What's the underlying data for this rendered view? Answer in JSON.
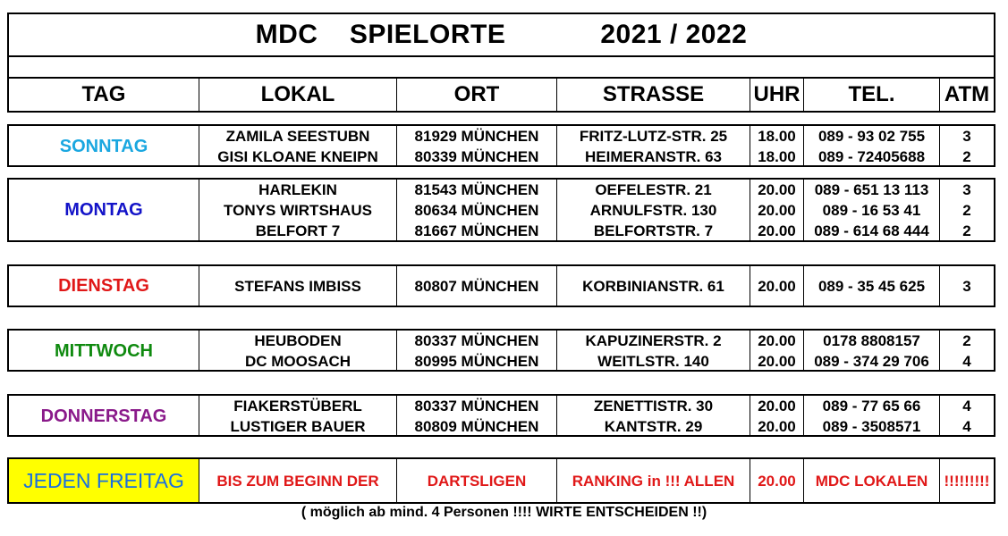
{
  "title": {
    "mdc": "MDC",
    "spielorte": "SPIELORTE",
    "season": "2021 / 2022"
  },
  "headers": [
    "TAG",
    "LOKAL",
    "ORT",
    "STRASSE",
    "UHR",
    "TEL.",
    "ATM"
  ],
  "colors": {
    "sonntag": "#1aa7e0",
    "montag": "#1313c8",
    "dienstag": "#e01818",
    "mittwoch": "#0f8a0f",
    "donnerstag": "#8a1a8a",
    "freitag_text": "#1a6fe0",
    "freitag_bg": "#ffff00",
    "red": "#e01818"
  },
  "groups": [
    {
      "day": "SONNTAG",
      "rows": [
        {
          "lokal": "ZAMILA SEESTUBN",
          "ort": "81929 MÜNCHEN",
          "strasse": "FRITZ-LUTZ-STR. 25",
          "uhr": "18.00",
          "tel": "089 - 93 02 755",
          "atm": "3"
        },
        {
          "lokal": "GISI KLOANE KNEIPN",
          "ort": "80339 MÜNCHEN",
          "strasse": "HEIMERANSTR. 63",
          "uhr": "18.00",
          "tel": "089 - 72405688",
          "atm": "2"
        }
      ]
    },
    {
      "day": "MONTAG",
      "rows": [
        {
          "lokal": "HARLEKIN",
          "ort": "81543 MÜNCHEN",
          "strasse": "OEFELESTR. 21",
          "uhr": "20.00",
          "tel": "089 - 651 13 113",
          "atm": "3"
        },
        {
          "lokal": "TONYS WIRTSHAUS",
          "ort": "80634 MÜNCHEN",
          "strasse": "ARNULFSTR. 130",
          "uhr": "20.00",
          "tel": "089 - 16 53 41",
          "atm": "2"
        },
        {
          "lokal": "BELFORT 7",
          "ort": "81667 MÜNCHEN",
          "strasse": "BELFORTSTR. 7",
          "uhr": "20.00",
          "tel": "089 - 614 68 444",
          "atm": "2"
        }
      ]
    },
    {
      "day": "DIENSTAG",
      "rows": [
        {
          "lokal": "STEFANS IMBISS",
          "ort": "80807 MÜNCHEN",
          "strasse": "KORBINIANSTR. 61",
          "uhr": "20.00",
          "tel": "089 - 35 45 625",
          "atm": "3"
        }
      ]
    },
    {
      "day": "MITTWOCH",
      "rows": [
        {
          "lokal": "HEUBODEN",
          "ort": "80337 MÜNCHEN",
          "strasse": "KAPUZINERSTR. 2",
          "uhr": "20.00",
          "tel": "0178 8808157",
          "atm": "2"
        },
        {
          "lokal": "DC MOOSACH",
          "ort": "80995 MÜNCHEN",
          "strasse": "WEITLSTR. 140",
          "uhr": "20.00",
          "tel": "089 - 374 29 706",
          "atm": "4"
        }
      ]
    },
    {
      "day": "DONNERSTAG",
      "rows": [
        {
          "lokal": "FIAKERSTÜBERL",
          "ort": "80337 MÜNCHEN",
          "strasse": "ZENETTISTR. 30",
          "uhr": "20.00",
          "tel": "089 - 77 65 66",
          "atm": "4"
        },
        {
          "lokal": "LUSTIGER BAUER",
          "ort": "80809 MÜNCHEN",
          "strasse": "KANTSTR. 29",
          "uhr": "20.00",
          "tel": "089 - 3508571",
          "atm": "4"
        }
      ]
    }
  ],
  "freitag": {
    "day": "JEDEN FREITAG",
    "c1": "BIS ZUM BEGINN DER",
    "c2": "DARTSLIGEN",
    "c3": "RANKING in !!! ALLEN",
    "c4": "20.00",
    "c5": "MDC LOKALEN",
    "c6": "!!!!!!!!!"
  },
  "footnote": "( möglich ab mind. 4 Personen !!!! WIRTE ENTSCHEIDEN !!)"
}
